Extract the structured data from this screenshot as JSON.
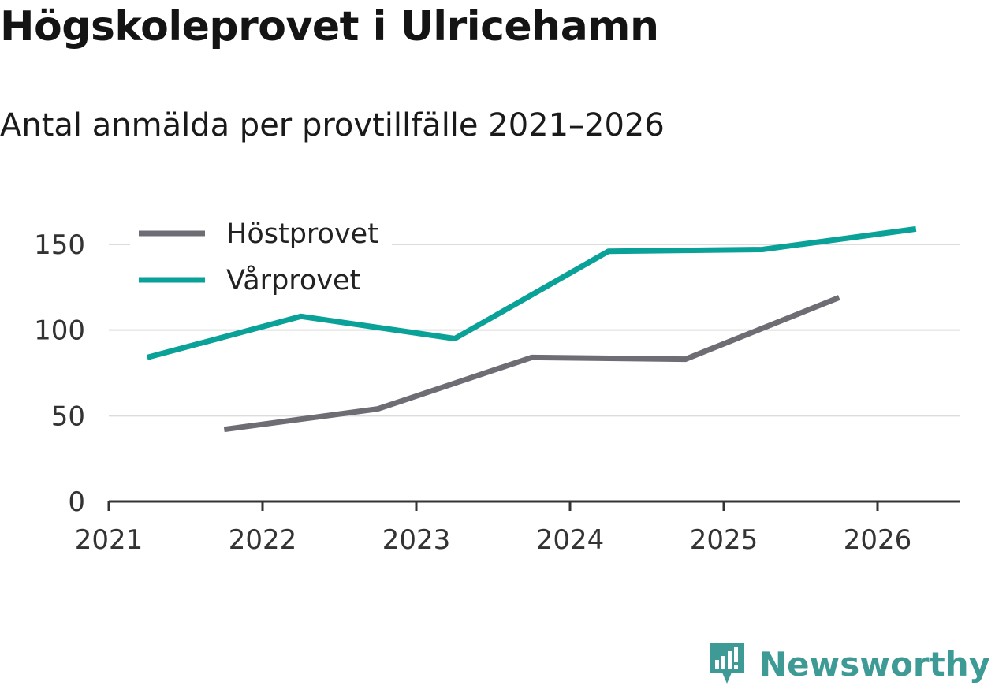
{
  "title": "Högskoleprovet i Ulricehamn",
  "subtitle": "Antal anmälda per provtillfälle 2021–2026",
  "brand": {
    "name": "Newsworthy",
    "logo_icon": "bar-chart-speech-bubble-icon",
    "color": "#3d9a95"
  },
  "chart_data": {
    "type": "line",
    "title": "Högskoleprovet i Ulricehamn",
    "subtitle": "Antal anmälda per provtillfälle 2021–2026",
    "xlabel": "",
    "ylabel": "",
    "xlim": [
      2021,
      2026.5
    ],
    "ylim": [
      0,
      160
    ],
    "x_ticks": [
      "2021",
      "2022",
      "2023",
      "2024",
      "2025",
      "2026"
    ],
    "y_ticks": [
      "0",
      "50",
      "100",
      "150"
    ],
    "grid": "horizontal",
    "legend_position": "top-left",
    "series": [
      {
        "name": "Höstprovet",
        "color": "#6e6d73",
        "x": [
          2021.75,
          2022.75,
          2023.75,
          2024.75,
          2025.75
        ],
        "values": [
          42,
          54,
          84,
          83,
          119
        ]
      },
      {
        "name": "Vårprovet",
        "color": "#0aa198",
        "x": [
          2021.25,
          2022.25,
          2023.25,
          2024.25,
          2025.25,
          2026.25
        ],
        "values": [
          84,
          108,
          95,
          146,
          147,
          159
        ]
      }
    ]
  }
}
